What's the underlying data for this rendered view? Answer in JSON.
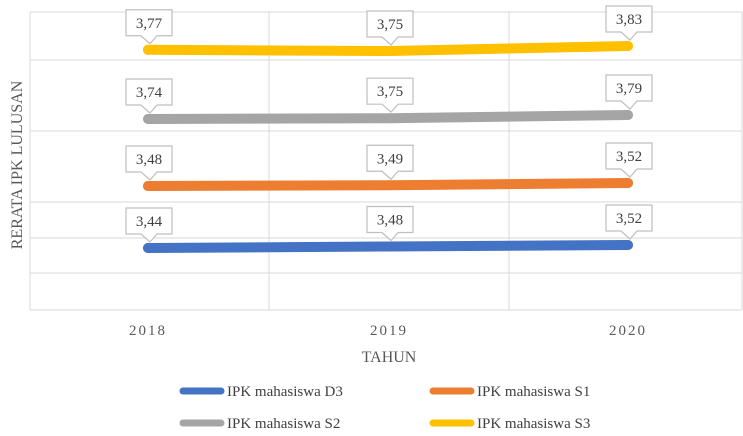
{
  "chart_data": {
    "type": "line",
    "title": "",
    "xlabel": "TAHUN",
    "ylabel": "RERATA IPK LULUSAN",
    "categories": [
      "2018",
      "2019",
      "2020"
    ],
    "series": [
      {
        "name": "IPK mahasiswa D3",
        "values": [
          3.44,
          3.48,
          3.52
        ],
        "labels": [
          "3,44",
          "3,48",
          "3,52"
        ],
        "color": "#4472C4"
      },
      {
        "name": "IPK mahasiswa S1",
        "values": [
          3.48,
          3.49,
          3.52
        ],
        "labels": [
          "3,48",
          "3,49",
          "3,52"
        ],
        "color": "#ED7D31"
      },
      {
        "name": "IPK mahasiswa S2",
        "values": [
          3.74,
          3.75,
          3.79
        ],
        "labels": [
          "3,74",
          "3,75",
          "3,79"
        ],
        "color": "#A5A5A5"
      },
      {
        "name": "IPK mahasiswa S3",
        "values": [
          3.77,
          3.75,
          3.83
        ],
        "labels": [
          "3,77",
          "3,75",
          "3,83"
        ],
        "color": "#FFC000"
      }
    ],
    "grid": true,
    "legend_position": "bottom",
    "data_labels": "callout"
  }
}
